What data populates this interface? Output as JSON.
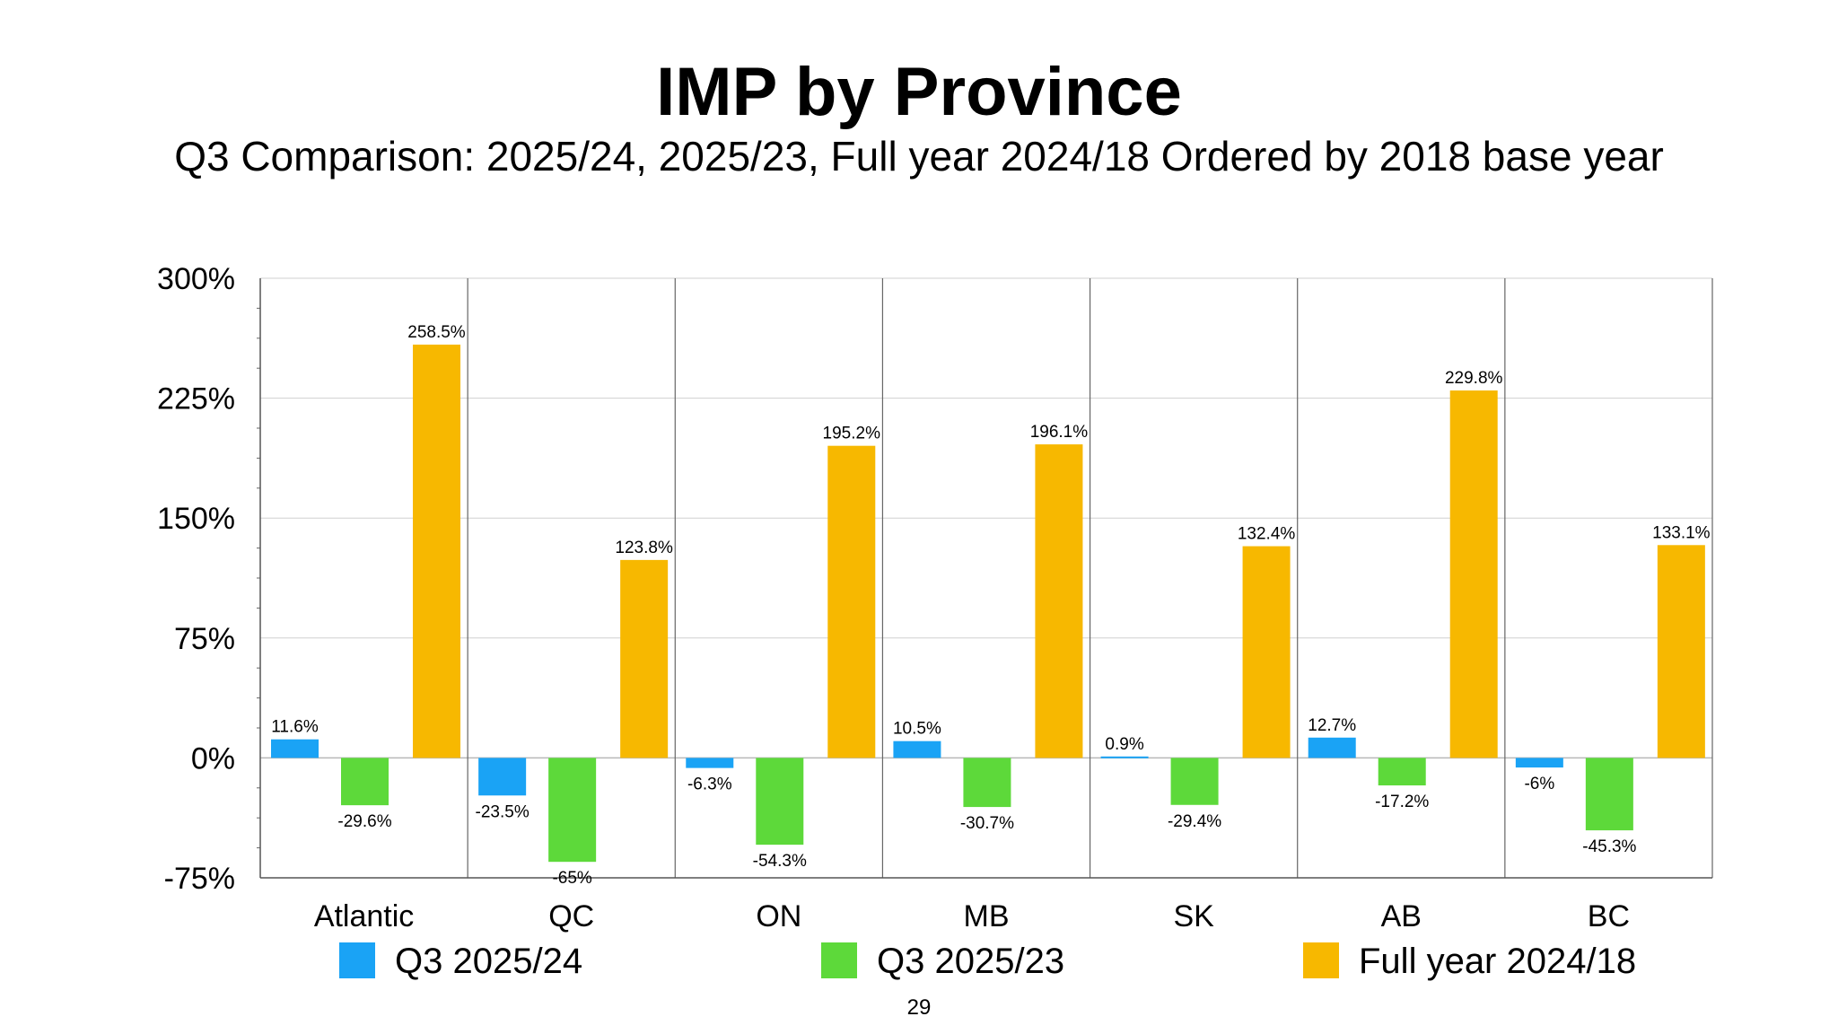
{
  "slide": {
    "title": "IMP by Province",
    "subtitle": "Q3 Comparison: 2025/24, 2025/23, Full year 2024/18 Ordered by 2018 base year",
    "page_number": "29"
  },
  "chart_data": {
    "type": "bar",
    "title": "",
    "xlabel": "",
    "ylabel": "",
    "categories": [
      "Atlantic",
      "QC",
      "ON",
      "MB",
      "SK",
      "AB",
      "BC"
    ],
    "series": [
      {
        "name": "Q3 2025/24",
        "color": "#1aa3f5",
        "values": [
          11.6,
          -23.5,
          -6.3,
          10.5,
          0.9,
          12.7,
          -6
        ],
        "labels": [
          "11.6%",
          "-23.5%",
          "-6.3%",
          "10.5%",
          "0.9%",
          "12.7%",
          "-6%"
        ]
      },
      {
        "name": "Q3 2025/23",
        "color": "#5dd93a",
        "values": [
          -29.6,
          -65,
          -54.3,
          -30.7,
          -29.4,
          -17.2,
          -45.3
        ],
        "labels": [
          "-29.6%",
          "-65%",
          "-54.3%",
          "-30.7%",
          "-29.4%",
          "-17.2%",
          "-45.3%"
        ]
      },
      {
        "name": "Full year 2024/18",
        "color": "#f7b800",
        "values": [
          258.5,
          123.8,
          195.2,
          196.1,
          132.4,
          229.8,
          133.1
        ],
        "labels": [
          "258.5%",
          "123.8%",
          "195.2%",
          "196.1%",
          "132.4%",
          "229.8%",
          "133.1%"
        ]
      }
    ],
    "ylim": [
      -75,
      300
    ],
    "yticks": [
      -75,
      0,
      75,
      150,
      225,
      300
    ],
    "ytick_labels": [
      "-75%",
      "0%",
      "75%",
      "150%",
      "225%",
      "300%"
    ],
    "grid": true,
    "legend_position": "bottom"
  }
}
